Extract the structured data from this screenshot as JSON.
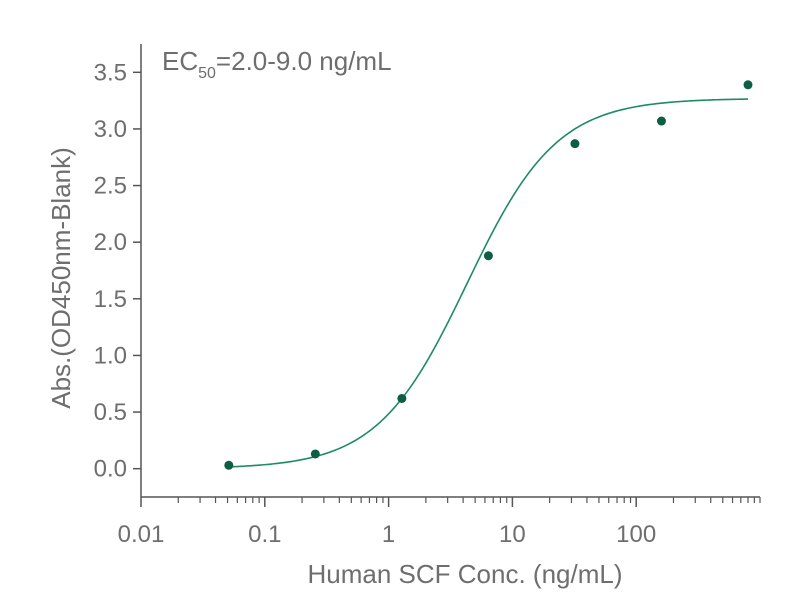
{
  "chart_data": {
    "type": "scatter",
    "xlabel": "Human SCF Conc. (ng/mL)",
    "ylabel": "Abs.(OD450nm-Blank)",
    "xscale": "log",
    "xlim": [
      0.01,
      1000
    ],
    "ylim": [
      -0.25,
      3.75
    ],
    "x_ticks": [
      0.01,
      0.1,
      1,
      10,
      100
    ],
    "x_tick_labels": [
      "0.01",
      "0.1",
      "1",
      "10",
      "100"
    ],
    "y_ticks": [
      0.0,
      0.5,
      1.0,
      1.5,
      2.0,
      2.5,
      3.0,
      3.5
    ],
    "y_tick_labels": [
      "0.0",
      "0.5",
      "1.0",
      "1.5",
      "2.0",
      "2.5",
      "3.0",
      "3.5"
    ],
    "grid": false,
    "points": {
      "x": [
        0.0512,
        0.256,
        1.28,
        6.4,
        32,
        160,
        800
      ],
      "y": [
        0.03,
        0.13,
        0.62,
        1.88,
        2.87,
        3.07,
        3.39
      ]
    },
    "fit": {
      "model": "4PL",
      "bottom": 0.0,
      "top": 3.27,
      "ec50": 4.3,
      "hill": 1.2,
      "x_range": [
        0.0512,
        800
      ]
    },
    "annotation": {
      "main": "EC",
      "sub": "50",
      "rest": "=2.0-9.0 ng/mL"
    },
    "colors": {
      "points": "#0e5e45",
      "fit": "#1e8a68",
      "axis": "#555555",
      "text": "#6e6e6e"
    }
  }
}
